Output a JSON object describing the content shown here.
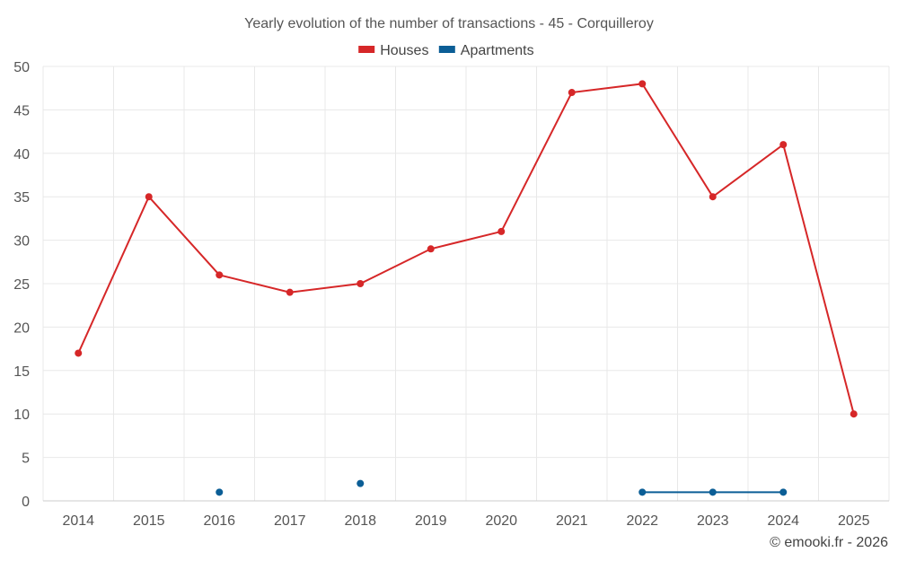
{
  "chart_data": {
    "type": "line",
    "title": "Yearly evolution of the number of transactions - 45 - Corquilleroy",
    "categories": [
      "2014",
      "2015",
      "2016",
      "2017",
      "2018",
      "2019",
      "2020",
      "2021",
      "2022",
      "2023",
      "2024",
      "2025"
    ],
    "ylim": [
      0,
      50
    ],
    "yticks": [
      0,
      5,
      10,
      15,
      20,
      25,
      30,
      35,
      40,
      45,
      50
    ],
    "grid": true,
    "legend_position": "top-center",
    "series": [
      {
        "name": "Houses",
        "color": "#d62728",
        "values": [
          17,
          35,
          26,
          24,
          25,
          29,
          31,
          47,
          48,
          35,
          41,
          10
        ]
      },
      {
        "name": "Apartments",
        "color": "#0b5e96",
        "values": [
          null,
          null,
          1,
          null,
          2,
          null,
          null,
          null,
          1,
          1,
          1,
          null
        ]
      }
    ]
  },
  "credit": "© emooki.fr - 2026"
}
